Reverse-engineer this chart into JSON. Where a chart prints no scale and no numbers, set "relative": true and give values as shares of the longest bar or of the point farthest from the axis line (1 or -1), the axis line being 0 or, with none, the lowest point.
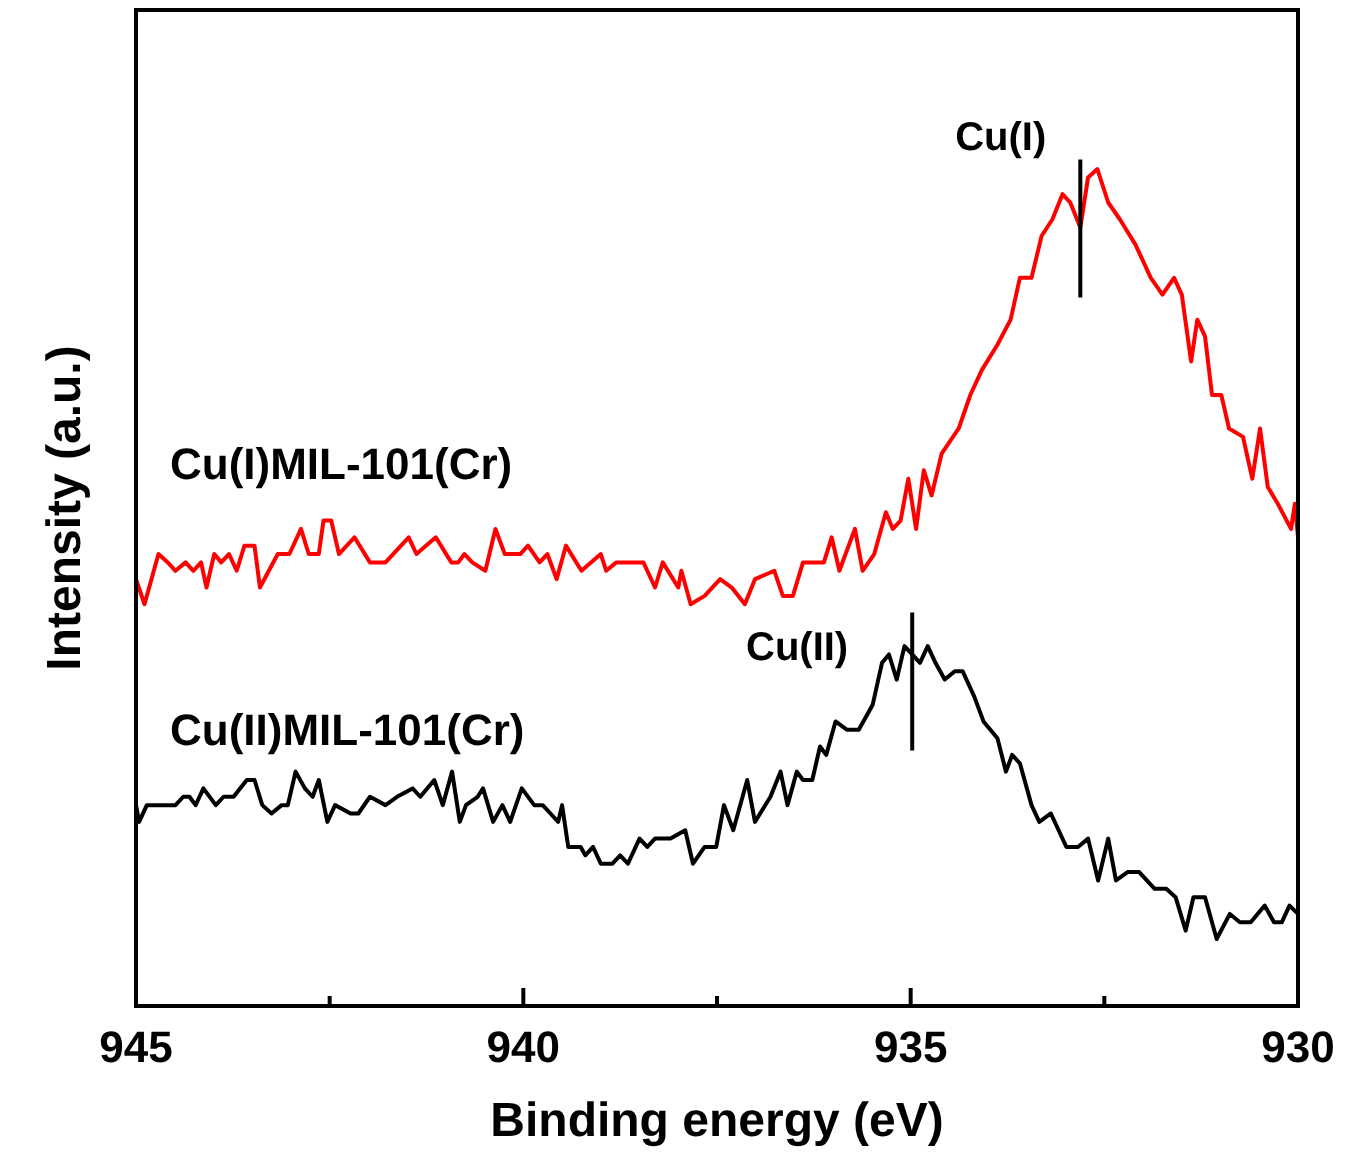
{
  "chart_data": {
    "type": "line",
    "relative": true,
    "xlabel": "Binding energy (eV)",
    "ylabel": "Intensity (a.u.)",
    "xlim": [
      945,
      930
    ],
    "xticks": [
      945,
      {
        "value": 942.5,
        "label": null
      },
      940,
      {
        "value": 937.5,
        "label": null
      },
      935,
      {
        "value": 932.5,
        "label": null
      },
      930
    ],
    "legend": false,
    "grid": false,
    "marker": "none",
    "line_style": "solid",
    "annotations": [
      {
        "text": "Cu(I)",
        "x": 932.81,
        "y": 0.93
      },
      {
        "text": "Cu(II)",
        "x": 934.98,
        "y": 0.42
      }
    ],
    "series": [
      {
        "name": "Cu(I)MIL-101(Cr)",
        "color": "#ff0000",
        "x": [
          945.0,
          944.89,
          944.71,
          944.59,
          944.49,
          944.36,
          944.26,
          944.16,
          944.09,
          943.99,
          943.9,
          943.8,
          943.7,
          943.6,
          943.47,
          943.4,
          943.17,
          943.02,
          942.87,
          942.77,
          942.64,
          942.58,
          942.48,
          942.38,
          942.18,
          941.98,
          941.78,
          941.68,
          941.48,
          941.38,
          941.13,
          940.93,
          940.84,
          940.76,
          940.66,
          940.49,
          940.36,
          940.24,
          940.04,
          939.94,
          939.79,
          939.69,
          939.57,
          939.45,
          939.25,
          939.0,
          938.93,
          938.8,
          938.45,
          938.3,
          938.2,
          938.0,
          937.96,
          937.84,
          937.66,
          937.46,
          937.31,
          937.14,
          937.01,
          936.76,
          936.65,
          936.52,
          936.39,
          936.27,
          936.12,
          936.02,
          935.92,
          935.72,
          935.62,
          935.47,
          935.32,
          935.23,
          935.13,
          935.03,
          934.93,
          934.83,
          934.73,
          934.6,
          934.38,
          934.23,
          934.08,
          933.88,
          933.71,
          933.59,
          933.44,
          933.31,
          933.17,
          933.04,
          932.94,
          932.81,
          932.71,
          932.59,
          932.45,
          932.3,
          932.1,
          931.9,
          931.75,
          931.6,
          931.5,
          931.38,
          931.3,
          931.2,
          931.11,
          930.99,
          930.89,
          930.71,
          930.59,
          930.49,
          930.39,
          930.26,
          930.09,
          930.04,
          930.0
        ],
        "values": [
          0.51,
          0.48,
          0.54,
          0.53,
          0.52,
          0.53,
          0.52,
          0.53,
          0.5,
          0.54,
          0.53,
          0.54,
          0.52,
          0.55,
          0.55,
          0.5,
          0.54,
          0.54,
          0.57,
          0.54,
          0.54,
          0.58,
          0.58,
          0.54,
          0.56,
          0.53,
          0.53,
          0.54,
          0.56,
          0.54,
          0.56,
          0.53,
          0.53,
          0.54,
          0.53,
          0.52,
          0.57,
          0.54,
          0.54,
          0.55,
          0.53,
          0.54,
          0.51,
          0.55,
          0.52,
          0.54,
          0.52,
          0.53,
          0.53,
          0.5,
          0.53,
          0.5,
          0.52,
          0.48,
          0.49,
          0.51,
          0.5,
          0.48,
          0.51,
          0.52,
          0.49,
          0.49,
          0.53,
          0.53,
          0.53,
          0.56,
          0.52,
          0.57,
          0.52,
          0.54,
          0.59,
          0.57,
          0.58,
          0.63,
          0.57,
          0.64,
          0.61,
          0.66,
          0.69,
          0.73,
          0.76,
          0.79,
          0.82,
          0.87,
          0.87,
          0.92,
          0.94,
          0.97,
          0.96,
          0.93,
          0.99,
          1,
          0.96,
          0.94,
          0.91,
          0.87,
          0.85,
          0.87,
          0.85,
          0.77,
          0.82,
          0.8,
          0.73,
          0.73,
          0.69,
          0.68,
          0.63,
          0.69,
          0.62,
          0.6,
          0.57,
          0.6,
          0.56
        ]
      },
      {
        "name": "Cu(II)MIL-101(Cr)",
        "color": "#000000",
        "x": [
          945.0,
          944.96,
          944.86,
          944.71,
          944.59,
          944.49,
          944.39,
          944.31,
          944.23,
          944.13,
          943.97,
          943.87,
          943.74,
          943.57,
          943.47,
          943.37,
          943.25,
          943.12,
          943.04,
          942.94,
          942.82,
          942.72,
          942.64,
          942.53,
          942.43,
          942.23,
          942.13,
          941.98,
          941.78,
          941.63,
          941.43,
          941.33,
          941.15,
          941.04,
          940.92,
          940.82,
          940.74,
          940.59,
          940.52,
          940.39,
          940.27,
          940.17,
          940.02,
          939.86,
          939.75,
          939.65,
          939.55,
          939.5,
          939.42,
          939.26,
          939.2,
          939.1,
          939.0,
          938.85,
          938.75,
          938.65,
          938.5,
          938.4,
          938.3,
          938.1,
          937.91,
          937.81,
          937.66,
          937.51,
          937.41,
          937.29,
          937.11,
          937.01,
          936.81,
          936.68,
          936.59,
          936.47,
          936.39,
          936.27,
          936.17,
          936.09,
          935.97,
          935.82,
          935.67,
          935.49,
          935.37,
          935.28,
          935.18,
          935.08,
          934.98,
          934.88,
          934.78,
          934.68,
          934.56,
          934.43,
          934.33,
          934.18,
          934.06,
          933.88,
          933.77,
          933.69,
          933.59,
          933.44,
          933.34,
          933.19,
          932.99,
          932.84,
          932.71,
          932.58,
          932.45,
          932.35,
          932.2,
          932.05,
          931.85,
          931.7,
          931.58,
          931.45,
          931.35,
          931.2,
          931.05,
          930.88,
          930.75,
          930.61,
          930.43,
          930.31,
          930.21,
          930.11,
          930.0
        ],
        "values": [
          0.24,
          0.22,
          0.24,
          0.24,
          0.24,
          0.24,
          0.25,
          0.25,
          0.24,
          0.26,
          0.24,
          0.25,
          0.25,
          0.27,
          0.27,
          0.24,
          0.23,
          0.24,
          0.24,
          0.28,
          0.26,
          0.25,
          0.27,
          0.22,
          0.24,
          0.23,
          0.23,
          0.25,
          0.24,
          0.25,
          0.26,
          0.25,
          0.27,
          0.24,
          0.28,
          0.22,
          0.24,
          0.25,
          0.26,
          0.22,
          0.24,
          0.22,
          0.26,
          0.24,
          0.24,
          0.23,
          0.22,
          0.24,
          0.19,
          0.19,
          0.18,
          0.19,
          0.17,
          0.17,
          0.18,
          0.17,
          0.2,
          0.19,
          0.2,
          0.2,
          0.21,
          0.17,
          0.19,
          0.19,
          0.24,
          0.21,
          0.27,
          0.22,
          0.25,
          0.28,
          0.24,
          0.28,
          0.27,
          0.27,
          0.31,
          0.3,
          0.34,
          0.33,
          0.33,
          0.36,
          0.41,
          0.42,
          0.39,
          0.43,
          0.42,
          0.41,
          0.43,
          0.41,
          0.39,
          0.4,
          0.4,
          0.37,
          0.34,
          0.32,
          0.28,
          0.3,
          0.29,
          0.24,
          0.22,
          0.23,
          0.19,
          0.19,
          0.2,
          0.15,
          0.2,
          0.15,
          0.16,
          0.16,
          0.14,
          0.14,
          0.13,
          0.09,
          0.13,
          0.13,
          0.08,
          0.11,
          0.1,
          0.1,
          0.12,
          0.1,
          0.1,
          0.12,
          0.11
        ]
      }
    ]
  }
}
